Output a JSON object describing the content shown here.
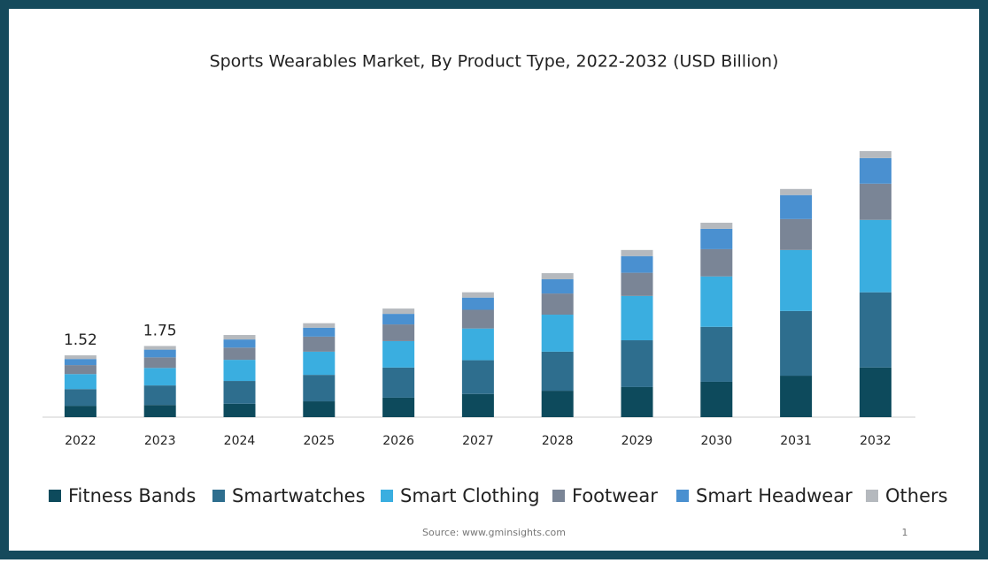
{
  "chart_data": {
    "type": "stacked-bar",
    "title": "Sports Wearables Market, By Product Type, 2022-2032 (USD Billion)",
    "categories": [
      "2022",
      "2023",
      "2024",
      "2025",
      "2026",
      "2027",
      "2028",
      "2029",
      "2030",
      "2031",
      "2032"
    ],
    "series": [
      {
        "name": "Fitness Bands",
        "color": "#0d4a5c",
        "values": [
          0.28,
          0.3,
          0.33,
          0.39,
          0.48,
          0.57,
          0.65,
          0.74,
          0.87,
          1.02,
          1.22
        ]
      },
      {
        "name": "Smartwatches",
        "color": "#2e6e8e",
        "values": [
          0.41,
          0.48,
          0.56,
          0.65,
          0.74,
          0.83,
          0.96,
          1.15,
          1.35,
          1.59,
          1.85
        ]
      },
      {
        "name": "Smart Clothing",
        "color": "#3aaee0",
        "values": [
          0.37,
          0.43,
          0.52,
          0.57,
          0.65,
          0.78,
          0.91,
          1.09,
          1.24,
          1.5,
          1.78
        ]
      },
      {
        "name": "Footwear",
        "color": "#7a8596",
        "values": [
          0.22,
          0.26,
          0.3,
          0.37,
          0.41,
          0.46,
          0.52,
          0.57,
          0.67,
          0.76,
          0.89
        ]
      },
      {
        "name": "Smart Headwear",
        "color": "#4a90d0",
        "values": [
          0.15,
          0.19,
          0.2,
          0.22,
          0.26,
          0.3,
          0.35,
          0.41,
          0.5,
          0.59,
          0.63
        ]
      },
      {
        "name": "Others",
        "color": "#b5b9be",
        "values": [
          0.09,
          0.09,
          0.11,
          0.11,
          0.13,
          0.13,
          0.15,
          0.15,
          0.15,
          0.15,
          0.17
        ]
      }
    ],
    "totals": [
      1.52,
      1.75,
      null,
      null,
      null,
      null,
      null,
      null,
      null,
      null,
      null
    ],
    "source": "Source: www.gminsights.com",
    "page_number": "1"
  }
}
